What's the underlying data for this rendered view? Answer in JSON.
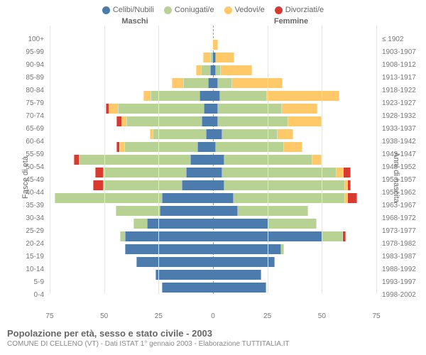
{
  "legend": [
    {
      "label": "Celibi/Nubili",
      "color": "#4b7cad"
    },
    {
      "label": "Coniugati/e",
      "color": "#b8d294"
    },
    {
      "label": "Vedovi/e",
      "color": "#ffc868"
    },
    {
      "label": "Divorziati/e",
      "color": "#d83a2f"
    }
  ],
  "column_headers": {
    "left": "Maschi",
    "right": "Femmine"
  },
  "axis_titles": {
    "left": "Fasce di età",
    "right": "Anni di nascita"
  },
  "x_axis": {
    "max": 75,
    "ticks": [
      0,
      25,
      50,
      75
    ]
  },
  "colors": {
    "background": "#ffffff",
    "grid": "#e5e5e5",
    "center_line": "#999999",
    "text": "#666666"
  },
  "rows": [
    {
      "age": "100+",
      "birth": "≤ 1902",
      "m": {
        "cel": 0,
        "con": 0,
        "ved": 0,
        "div": 0
      },
      "f": {
        "cel": 0,
        "con": 0,
        "ved": 0,
        "div": 0
      }
    },
    {
      "age": "95-99",
      "birth": "1903-1907",
      "m": {
        "cel": 0,
        "con": 0,
        "ved": 0,
        "div": 0
      },
      "f": {
        "cel": 0,
        "con": 0,
        "ved": 2,
        "div": 0
      }
    },
    {
      "age": "90-94",
      "birth": "1908-1912",
      "m": {
        "cel": 0,
        "con": 1,
        "ved": 3,
        "div": 0
      },
      "f": {
        "cel": 1,
        "con": 0,
        "ved": 8,
        "div": 0
      }
    },
    {
      "age": "85-89",
      "birth": "1913-1917",
      "m": {
        "cel": 1,
        "con": 4,
        "ved": 2,
        "div": 0
      },
      "f": {
        "cel": 1,
        "con": 2,
        "ved": 14,
        "div": 0
      }
    },
    {
      "age": "80-84",
      "birth": "1918-1922",
      "m": {
        "cel": 2,
        "con": 11,
        "ved": 5,
        "div": 0
      },
      "f": {
        "cel": 2,
        "con": 6,
        "ved": 23,
        "div": 0
      }
    },
    {
      "age": "75-79",
      "birth": "1923-1927",
      "m": {
        "cel": 6,
        "con": 22,
        "ved": 3,
        "div": 0
      },
      "f": {
        "cel": 3,
        "con": 21,
        "ved": 33,
        "div": 0
      }
    },
    {
      "age": "70-74",
      "birth": "1928-1932",
      "m": {
        "cel": 4,
        "con": 39,
        "ved": 4,
        "div": 1
      },
      "f": {
        "cel": 2,
        "con": 29,
        "ved": 16,
        "div": 0
      }
    },
    {
      "age": "65-69",
      "birth": "1933-1937",
      "m": {
        "cel": 5,
        "con": 34,
        "ved": 2,
        "div": 2
      },
      "f": {
        "cel": 2,
        "con": 32,
        "ved": 15,
        "div": 0
      }
    },
    {
      "age": "60-64",
      "birth": "1938-1942",
      "m": {
        "cel": 3,
        "con": 24,
        "ved": 1,
        "div": 0
      },
      "f": {
        "cel": 4,
        "con": 25,
        "ved": 7,
        "div": 0
      }
    },
    {
      "age": "55-59",
      "birth": "1943-1947",
      "m": {
        "cel": 7,
        "con": 33,
        "ved": 2,
        "div": 1
      },
      "f": {
        "cel": 1,
        "con": 31,
        "ved": 8,
        "div": 0
      }
    },
    {
      "age": "50-54",
      "birth": "1948-1952",
      "m": {
        "cel": 10,
        "con": 51,
        "ved": 0,
        "div": 2
      },
      "f": {
        "cel": 5,
        "con": 40,
        "ved": 4,
        "div": 0
      }
    },
    {
      "age": "45-49",
      "birth": "1953-1957",
      "m": {
        "cel": 12,
        "con": 38,
        "ved": 0,
        "div": 3
      },
      "f": {
        "cel": 4,
        "con": 52,
        "ved": 3,
        "div": 3
      }
    },
    {
      "age": "40-44",
      "birth": "1958-1962",
      "m": {
        "cel": 14,
        "con": 36,
        "ved": 0,
        "div": 4
      },
      "f": {
        "cel": 5,
        "con": 55,
        "ved": 1,
        "div": 1
      }
    },
    {
      "age": "35-39",
      "birth": "1963-1967",
      "m": {
        "cel": 23,
        "con": 49,
        "ved": 0,
        "div": 0
      },
      "f": {
        "cel": 9,
        "con": 51,
        "ved": 1,
        "div": 4
      }
    },
    {
      "age": "30-34",
      "birth": "1968-1972",
      "m": {
        "cel": 24,
        "con": 20,
        "ved": 0,
        "div": 0
      },
      "f": {
        "cel": 11,
        "con": 32,
        "ved": 0,
        "div": 0
      }
    },
    {
      "age": "25-29",
      "birth": "1973-1977",
      "m": {
        "cel": 30,
        "con": 6,
        "ved": 0,
        "div": 0
      },
      "f": {
        "cel": 25,
        "con": 22,
        "ved": 0,
        "div": 0
      }
    },
    {
      "age": "20-24",
      "birth": "1978-1982",
      "m": {
        "cel": 40,
        "con": 2,
        "ved": 0,
        "div": 0
      },
      "f": {
        "cel": 50,
        "con": 9,
        "ved": 0,
        "div": 1
      }
    },
    {
      "age": "15-19",
      "birth": "1983-1987",
      "m": {
        "cel": 40,
        "con": 0,
        "ved": 0,
        "div": 0
      },
      "f": {
        "cel": 31,
        "con": 1,
        "ved": 0,
        "div": 0
      }
    },
    {
      "age": "10-14",
      "birth": "1988-1992",
      "m": {
        "cel": 35,
        "con": 0,
        "ved": 0,
        "div": 0
      },
      "f": {
        "cel": 28,
        "con": 0,
        "ved": 0,
        "div": 0
      }
    },
    {
      "age": "5-9",
      "birth": "1993-1997",
      "m": {
        "cel": 26,
        "con": 0,
        "ved": 0,
        "div": 0
      },
      "f": {
        "cel": 22,
        "con": 0,
        "ved": 0,
        "div": 0
      }
    },
    {
      "age": "0-4",
      "birth": "1998-2002",
      "m": {
        "cel": 23,
        "con": 0,
        "ved": 0,
        "div": 0
      },
      "f": {
        "cel": 24,
        "con": 0,
        "ved": 0,
        "div": 0
      }
    }
  ],
  "footer": {
    "title": "Popolazione per età, sesso e stato civile - 2003",
    "subtitle": "COMUNE DI CELLENO (VT) - Dati ISTAT 1° gennaio 2003 - Elaborazione TUTTITALIA.IT"
  }
}
